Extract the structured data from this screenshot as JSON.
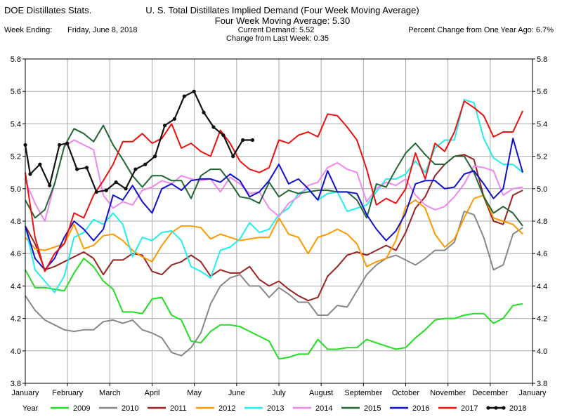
{
  "header": {
    "source": "DOE Distillates Stats.",
    "title": "U. S. Total Distillates Implied Demand  (Four Week Moving Average)",
    "subtitle": "Four Week Moving Average:  5.30",
    "week_label": "Week Ending:",
    "week_value": "Friday, June 8, 2018",
    "current_demand": "Current Demand:  5.52",
    "change": "Change from Last Week:  0.35",
    "pct_change": "Percent Change from One Year Ago:  6.7%"
  },
  "legend_title": "Year",
  "chart_data": {
    "type": "line",
    "x_ticks": [
      "January",
      "February",
      "March",
      "April",
      "May",
      "June",
      "July",
      "August",
      "September",
      "October",
      "November",
      "December",
      "January"
    ],
    "y_ticks": [
      "3.8",
      "4.0",
      "4.2",
      "4.4",
      "4.6",
      "4.8",
      "5.0",
      "5.2",
      "5.4",
      "5.6",
      "5.8"
    ],
    "ylim": [
      3.8,
      5.8
    ],
    "x_unit": "week of year",
    "xlim": [
      0,
      52
    ],
    "grid": true,
    "legend_position": "bottom",
    "series": [
      {
        "name": "2009",
        "color": "#22dd22",
        "marker": false,
        "x": [
          0,
          1,
          2,
          3,
          4,
          5,
          6,
          7,
          8,
          9,
          10,
          11,
          12,
          13,
          14,
          15,
          16,
          17,
          18,
          19,
          20,
          21,
          22,
          23,
          24,
          25,
          26,
          27,
          28,
          29,
          30,
          31,
          32,
          33,
          34,
          35,
          36,
          37,
          38,
          39,
          40,
          41,
          42,
          43,
          44,
          45,
          46,
          47,
          48,
          49,
          50,
          51
        ],
        "values": [
          4.5,
          4.39,
          4.39,
          4.38,
          4.37,
          4.48,
          4.57,
          4.52,
          4.43,
          4.38,
          4.24,
          4.24,
          4.23,
          4.32,
          4.33,
          4.22,
          4.19,
          4.06,
          4.05,
          4.12,
          4.16,
          4.16,
          4.15,
          4.12,
          4.09,
          4.06,
          3.95,
          3.96,
          3.98,
          3.98,
          4.07,
          4.01,
          4.01,
          4.02,
          4.02,
          4.07,
          4.05,
          4.03,
          4.01,
          4.02,
          4.08,
          4.13,
          4.19,
          4.2,
          4.2,
          4.22,
          4.23,
          4.23,
          4.17,
          4.2,
          4.28,
          4.29
        ]
      },
      {
        "name": "2010",
        "color": "#888888",
        "marker": false,
        "x": [
          0,
          1,
          2,
          3,
          4,
          5,
          6,
          7,
          8,
          9,
          10,
          11,
          12,
          13,
          14,
          15,
          16,
          17,
          18,
          19,
          20,
          21,
          22,
          23,
          24,
          25,
          26,
          27,
          28,
          29,
          30,
          31,
          32,
          33,
          34,
          35,
          36,
          37,
          38,
          39,
          40,
          41,
          42,
          43,
          44,
          45,
          46,
          47,
          48,
          49,
          50,
          51
        ],
        "values": [
          4.34,
          4.25,
          4.19,
          4.16,
          4.13,
          4.12,
          4.13,
          4.13,
          4.18,
          4.19,
          4.17,
          4.19,
          4.13,
          4.11,
          4.08,
          3.99,
          3.97,
          4.02,
          4.11,
          4.29,
          4.4,
          4.45,
          4.47,
          4.4,
          4.4,
          4.33,
          4.39,
          4.35,
          4.3,
          4.3,
          4.22,
          4.22,
          4.28,
          4.27,
          4.37,
          4.47,
          4.53,
          4.57,
          4.59,
          4.56,
          4.53,
          4.57,
          4.62,
          4.62,
          4.67,
          4.86,
          4.84,
          4.7,
          4.5,
          4.53,
          4.72,
          4.76
        ]
      },
      {
        "name": "2011",
        "color": "#992222",
        "marker": false,
        "x": [
          0,
          1,
          2,
          3,
          4,
          5,
          6,
          7,
          8,
          9,
          10,
          11,
          12,
          13,
          14,
          15,
          16,
          17,
          18,
          19,
          20,
          21,
          22,
          23,
          24,
          25,
          26,
          27,
          28,
          29,
          30,
          31,
          32,
          33,
          34,
          35,
          36,
          37,
          38,
          39,
          40,
          41,
          42,
          43,
          44,
          45,
          46,
          47,
          48,
          49,
          50,
          51
        ],
        "values": [
          4.77,
          4.66,
          4.5,
          4.52,
          4.55,
          4.58,
          4.61,
          4.57,
          4.47,
          4.56,
          4.56,
          4.6,
          4.59,
          4.49,
          4.47,
          4.53,
          4.55,
          4.59,
          4.55,
          4.46,
          4.5,
          4.48,
          4.48,
          4.52,
          4.44,
          4.4,
          4.43,
          4.38,
          4.34,
          4.31,
          4.33,
          4.46,
          4.52,
          4.59,
          4.61,
          4.59,
          4.62,
          4.65,
          4.62,
          4.73,
          4.88,
          4.95,
          5.08,
          5.15,
          5.2,
          5.21,
          5.18,
          4.95,
          4.8,
          4.78,
          4.96,
          4.99
        ]
      },
      {
        "name": "2012",
        "color": "#ff9900",
        "marker": false,
        "x": [
          0,
          1,
          2,
          3,
          4,
          5,
          6,
          7,
          8,
          9,
          10,
          11,
          12,
          13,
          14,
          15,
          16,
          17,
          18,
          19,
          20,
          21,
          22,
          23,
          24,
          25,
          26,
          27,
          28,
          29,
          30,
          31,
          32,
          33,
          34,
          35,
          36,
          37,
          38,
          39,
          40,
          41,
          42,
          43,
          44,
          45,
          46,
          47,
          48,
          49,
          50,
          51
        ],
        "values": [
          4.7,
          4.63,
          4.62,
          4.64,
          4.66,
          4.78,
          4.63,
          4.65,
          4.71,
          4.72,
          4.68,
          4.62,
          4.58,
          4.55,
          4.65,
          4.73,
          4.77,
          4.77,
          4.76,
          4.69,
          4.72,
          4.7,
          4.68,
          4.69,
          4.7,
          4.7,
          4.82,
          4.72,
          4.7,
          4.6,
          4.7,
          4.72,
          4.75,
          4.72,
          4.66,
          4.52,
          4.55,
          4.57,
          4.68,
          4.89,
          4.93,
          4.88,
          4.72,
          4.64,
          4.69,
          4.82,
          4.94,
          4.96,
          4.82,
          4.8,
          4.78,
          4.72
        ]
      },
      {
        "name": "2013",
        "color": "#22eeee",
        "marker": false,
        "x": [
          0,
          1,
          2,
          3,
          4,
          5,
          6,
          7,
          8,
          9,
          10,
          11,
          12,
          13,
          14,
          15,
          16,
          17,
          18,
          19,
          20,
          21,
          22,
          23,
          24,
          25,
          26,
          27,
          28,
          29,
          30,
          31,
          32,
          33,
          34,
          35,
          36,
          37,
          38,
          39,
          40,
          41,
          42,
          43,
          44,
          45,
          46,
          47,
          48,
          49,
          50,
          51
        ],
        "values": [
          4.77,
          4.5,
          4.43,
          4.36,
          4.46,
          4.7,
          4.73,
          4.81,
          4.78,
          4.85,
          4.78,
          4.58,
          4.7,
          4.68,
          4.73,
          4.74,
          4.68,
          4.52,
          4.49,
          4.45,
          4.62,
          4.64,
          4.69,
          4.79,
          4.73,
          4.75,
          4.84,
          4.88,
          4.97,
          5.0,
          4.93,
          4.97,
          4.98,
          4.86,
          4.88,
          4.9,
          4.98,
          5.06,
          5.06,
          5.09,
          5.17,
          5.1,
          5.25,
          5.3,
          5.3,
          5.55,
          5.53,
          5.31,
          5.19,
          5.15,
          5.15,
          5.1
        ]
      },
      {
        "name": "2014",
        "color": "#ee88ee",
        "marker": false,
        "x": [
          0,
          1,
          2,
          3,
          4,
          5,
          6,
          7,
          8,
          9,
          10,
          11,
          12,
          13,
          14,
          15,
          16,
          17,
          18,
          19,
          20,
          21,
          22,
          23,
          24,
          25,
          26,
          27,
          28,
          29,
          30,
          31,
          32,
          33,
          34,
          35,
          36,
          37,
          38,
          39,
          40,
          41,
          42,
          43,
          44,
          45,
          46,
          47,
          48,
          49,
          50,
          51
        ],
        "values": [
          5.05,
          4.91,
          4.8,
          5.03,
          5.26,
          5.3,
          5.27,
          5.24,
          4.96,
          4.88,
          4.92,
          4.9,
          4.99,
          5.01,
          5.05,
          5.03,
          5.08,
          5.06,
          5.05,
          5.06,
          4.98,
          5.07,
          5.03,
          4.97,
          4.98,
          4.88,
          4.83,
          4.91,
          4.95,
          5.02,
          5.04,
          5.13,
          5.16,
          5.12,
          5.1,
          4.92,
          5.0,
          5.04,
          5.02,
          5.06,
          4.96,
          4.9,
          4.87,
          4.89,
          4.95,
          5.03,
          5.14,
          5.13,
          5.11,
          4.96,
          5.0,
          5.01
        ]
      },
      {
        "name": "2015",
        "color": "#226633",
        "marker": false,
        "x": [
          0,
          1,
          2,
          3,
          4,
          5,
          6,
          7,
          8,
          9,
          10,
          11,
          12,
          13,
          14,
          15,
          16,
          17,
          18,
          19,
          20,
          21,
          22,
          23,
          24,
          25,
          26,
          27,
          28,
          29,
          30,
          31,
          32,
          33,
          34,
          35,
          36,
          37,
          38,
          39,
          40,
          41,
          42,
          43,
          44,
          45,
          46,
          47,
          48,
          49,
          50,
          51
        ],
        "values": [
          4.93,
          4.82,
          4.87,
          5.03,
          5.26,
          5.37,
          5.34,
          5.29,
          5.39,
          5.27,
          5.18,
          5.08,
          5.01,
          5.08,
          5.08,
          5.05,
          5.05,
          4.94,
          5.08,
          5.12,
          5.12,
          5.04,
          4.95,
          4.94,
          4.91,
          5.04,
          4.95,
          4.99,
          4.97,
          4.98,
          4.99,
          4.99,
          4.98,
          4.98,
          4.93,
          4.82,
          5.03,
          5.01,
          5.12,
          5.22,
          5.28,
          5.21,
          5.15,
          5.15,
          5.2,
          5.2,
          5.1,
          4.95,
          4.85,
          4.89,
          4.85,
          4.77
        ]
      },
      {
        "name": "2016",
        "color": "#1111cc",
        "marker": false,
        "x": [
          0,
          1,
          2,
          3,
          4,
          5,
          6,
          7,
          8,
          9,
          10,
          11,
          12,
          13,
          14,
          15,
          16,
          17,
          18,
          19,
          20,
          21,
          22,
          23,
          24,
          25,
          26,
          27,
          28,
          29,
          30,
          31,
          32,
          33,
          34,
          35,
          36,
          37,
          38,
          39,
          40,
          41,
          42,
          43,
          44,
          45,
          46,
          47,
          48,
          49,
          50,
          51
        ],
        "values": [
          4.77,
          4.57,
          4.5,
          4.57,
          4.7,
          4.8,
          4.75,
          4.68,
          4.75,
          4.96,
          4.93,
          5.02,
          4.92,
          4.85,
          5.0,
          5.03,
          4.99,
          5.05,
          5.06,
          5.06,
          5.04,
          5.09,
          5.05,
          4.95,
          4.98,
          5.05,
          5.15,
          5.03,
          5.06,
          5.0,
          4.93,
          5.11,
          4.98,
          4.98,
          4.97,
          4.84,
          4.75,
          4.68,
          4.74,
          4.85,
          5.03,
          5.05,
          5.05,
          5.0,
          5.01,
          5.09,
          5.11,
          5.03,
          4.94,
          5.0,
          5.31,
          5.1
        ]
      },
      {
        "name": "2017",
        "color": "#ee1111",
        "marker": false,
        "x": [
          0,
          1,
          2,
          3,
          4,
          5,
          6,
          7,
          8,
          9,
          10,
          11,
          12,
          13,
          14,
          15,
          16,
          17,
          18,
          19,
          20,
          21,
          22,
          23,
          24,
          25,
          26,
          27,
          28,
          29,
          30,
          31,
          32,
          33,
          34,
          35,
          36,
          37,
          38,
          39,
          40,
          41,
          42,
          43,
          44,
          45,
          46,
          47,
          48,
          49,
          50,
          51
        ],
        "values": [
          5.1,
          4.7,
          4.49,
          4.6,
          4.66,
          4.85,
          4.82,
          4.96,
          5.05,
          5.15,
          5.29,
          5.29,
          5.34,
          5.28,
          5.31,
          5.4,
          5.25,
          5.28,
          5.23,
          5.2,
          5.36,
          5.28,
          5.17,
          5.12,
          5.1,
          5.13,
          5.3,
          5.28,
          5.33,
          5.35,
          5.32,
          5.46,
          5.45,
          5.38,
          5.3,
          5.12,
          4.9,
          4.94,
          4.91,
          5.0,
          5.22,
          5.06,
          5.28,
          5.23,
          5.35,
          5.54,
          5.5,
          5.45,
          5.32,
          5.35,
          5.35,
          5.48
        ]
      },
      {
        "name": "2018",
        "color": "#111111",
        "marker": true,
        "x": [
          0,
          0.5,
          1.5,
          2.5,
          3.5,
          4.3,
          5.3,
          6.3,
          7.3,
          8.3,
          9.3,
          10.3,
          11.3,
          12.3,
          13.3,
          14.3,
          15.3,
          16.3,
          17.3,
          18.3,
          19.3,
          20.3,
          21.3,
          22.3,
          23.3
        ],
        "values": [
          5.27,
          5.09,
          5.15,
          5.02,
          5.27,
          5.28,
          5.12,
          5.13,
          4.98,
          4.99,
          5.04,
          5.0,
          5.12,
          5.15,
          5.2,
          5.39,
          5.43,
          5.57,
          5.6,
          5.47,
          5.38,
          5.33,
          5.2,
          5.3,
          5.3
        ]
      }
    ]
  }
}
